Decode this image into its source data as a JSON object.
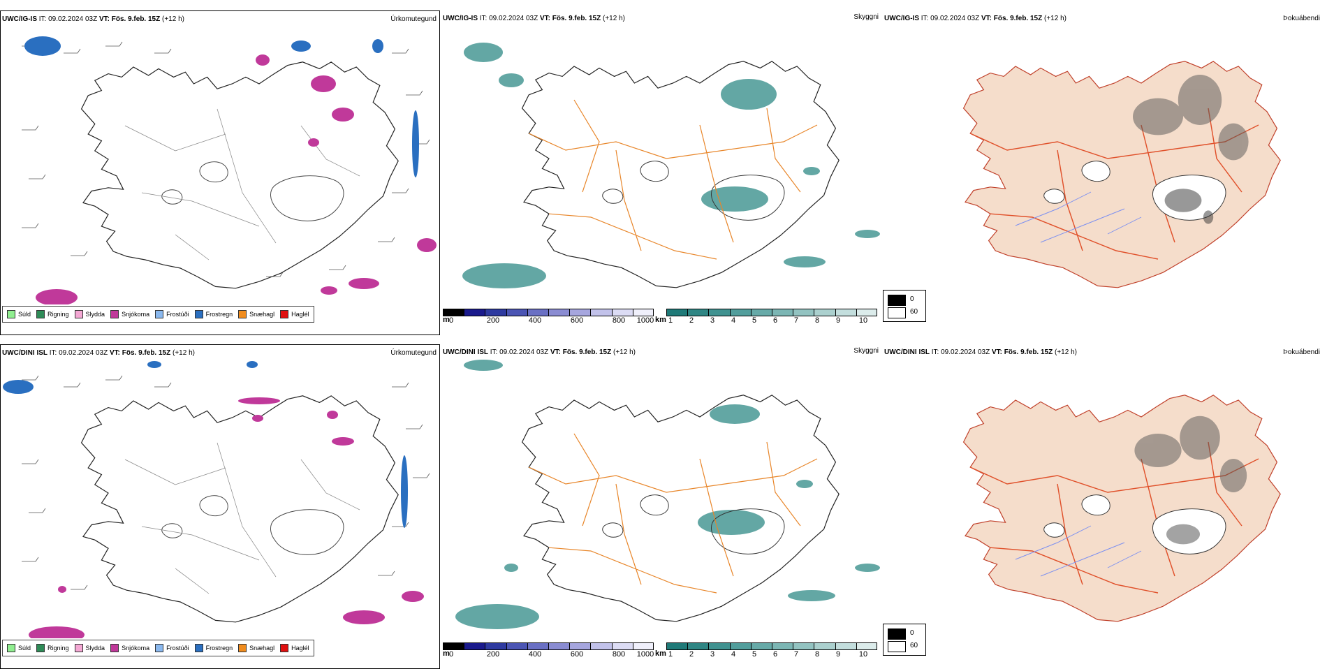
{
  "rows": [
    {
      "model": "UWC/IG-IS",
      "it_label": "IT:",
      "it_value": "09.02.2024 03Z",
      "vt_label": "VT:",
      "vt_value": "Fös. 9.feb. 15Z",
      "lead": "(+12 h)"
    },
    {
      "model": "UWC/DINI ISL",
      "it_label": "IT:",
      "it_value": "09.02.2024 03Z",
      "vt_label": "VT:",
      "vt_value": "Fös. 9.feb. 15Z",
      "lead": "(+12 h)"
    }
  ],
  "panels": {
    "precip_type": "Úrkomutegund",
    "visibility": "Skyggni",
    "fog": "Þokuábendi"
  },
  "precip_legend": [
    {
      "label": "Súld",
      "color": "#90ee90"
    },
    {
      "label": "Rigning",
      "color": "#2e8b57"
    },
    {
      "label": "Slydda",
      "color": "#f4a8d4"
    },
    {
      "label": "Snjókoma",
      "color": "#c0399a"
    },
    {
      "label": "Frostúði",
      "color": "#8ab8ee"
    },
    {
      "label": "Frostregn",
      "color": "#2a6fc0"
    },
    {
      "label": "Snæhagl",
      "color": "#f08c1e"
    },
    {
      "label": "Haglél",
      "color": "#e01010"
    }
  ],
  "ceiling_bar": {
    "unit": "m",
    "ticks": [
      "0",
      "200",
      "400",
      "600",
      "800",
      "1000"
    ],
    "colors": [
      "#000000",
      "#1a1a8c",
      "#2e3aa0",
      "#4b55b4",
      "#6a70c4",
      "#8a8cd2",
      "#a6a6de",
      "#c2c2ea",
      "#dcdcf4",
      "#f0f0fb"
    ]
  },
  "vis_bar": {
    "unit": "km",
    "ticks": [
      "1",
      "2",
      "3",
      "4",
      "5",
      "6",
      "7",
      "8",
      "9",
      "10"
    ],
    "colors": [
      "#1f7a78",
      "#2f8684",
      "#409290",
      "#529e9c",
      "#67aaa8",
      "#7cb6b4",
      "#93c3c1",
      "#abd0ce",
      "#c3dedd",
      "#dceceb"
    ]
  },
  "fog_legend": {
    "ticks": [
      "0",
      "60"
    ],
    "colors": [
      "#000000",
      "#ffffff"
    ]
  },
  "colors": {
    "land": "#f5ddcb",
    "roads_orange": "#e8862a",
    "roads_red": "#e0502a",
    "rivers": "#7b8ff0",
    "snow": "#c0399a",
    "freezing_rain": "#2a6fc0",
    "teal": "#2f8a86"
  }
}
